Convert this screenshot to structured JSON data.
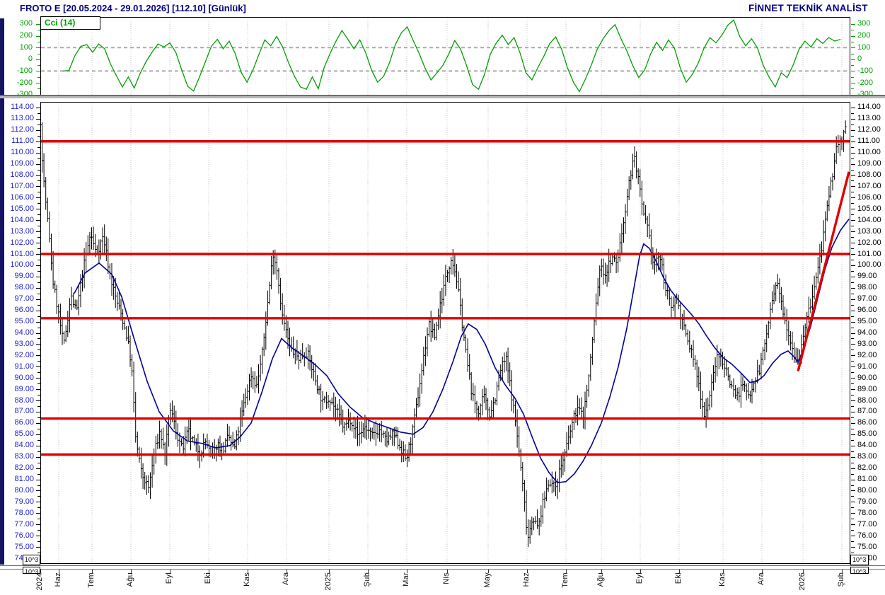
{
  "header": {
    "title": "FROTO E  [20.05.2024 - 29.01.2026]  [112.10]  [Günlük]",
    "brand": "FİNNET TEKNİK ANALİST",
    "symbol": "FROTO E",
    "date_range": "20.05.2024 - 29.01.2026",
    "last_price": "112.10",
    "period": "Günlük"
  },
  "indicator": {
    "label": "Cci (14)",
    "axis_ticks": [
      300,
      200,
      100,
      0,
      -100,
      -200,
      -300
    ],
    "ref_levels": [
      100,
      -100
    ]
  },
  "price_axis": {
    "max": 114,
    "min": 74,
    "label_step": 1,
    "tick_step": 0.5
  },
  "x_axis": {
    "labels": [
      [
        "2024",
        0
      ],
      [
        "Haz",
        0.0227
      ],
      [
        "Tem",
        0.0638
      ],
      [
        "Ağu",
        0.1118
      ],
      [
        "Eyl",
        0.1598
      ],
      [
        "Eki",
        0.2079
      ],
      [
        "Kas",
        0.2559
      ],
      [
        "Ara",
        0.3039
      ],
      [
        "2025",
        0.3563
      ],
      [
        "Şub",
        0.4044
      ],
      [
        "Mar",
        0.4524
      ],
      [
        "Nis",
        0.5022
      ],
      [
        "May",
        0.5528
      ],
      [
        "Haz",
        0.6009
      ],
      [
        "Tem",
        0.6489
      ],
      [
        "Ağu",
        0.6926
      ],
      [
        "Eyl",
        0.7406
      ],
      [
        "Eki",
        0.7886
      ],
      [
        "Kas",
        0.8428
      ],
      [
        "Ara",
        0.8908
      ],
      [
        "2026",
        0.9415
      ],
      [
        "Şub",
        0.9895
      ]
    ]
  },
  "scale": {
    "note": "10^3"
  },
  "colors": {
    "navy_text": "#000080",
    "left_axis_blue": "#2222cc",
    "right_axis_black": "#000000",
    "cci_green": "#00a000",
    "level_red": "#e00000",
    "ma_blue": "#000099",
    "bar_black": "#000000",
    "grid_dot": "#c6c6c6",
    "grid_dash": "#aaaaaa"
  },
  "chart_data": [
    {
      "type": "line",
      "name": "CCI (14)",
      "panel": "indicator",
      "legend": "Cci (14)",
      "ylim": [
        -308,
        360
      ],
      "ref_lines": [
        100,
        -100
      ],
      "x_start": 0.028,
      "x_step": 0.007328,
      "values": [
        -100,
        -95,
        30,
        110,
        125,
        60,
        130,
        90,
        -40,
        -140,
        -235,
        -150,
        -245,
        -120,
        -20,
        60,
        130,
        105,
        140,
        60,
        -90,
        -230,
        -270,
        -150,
        -20,
        110,
        170,
        90,
        155,
        50,
        -110,
        -195,
        -90,
        40,
        165,
        115,
        195,
        105,
        -30,
        -145,
        -235,
        -255,
        -150,
        -250,
        -70,
        50,
        155,
        245,
        170,
        90,
        165,
        55,
        -95,
        -195,
        -145,
        -30,
        125,
        225,
        275,
        160,
        50,
        -75,
        -175,
        -115,
        -50,
        45,
        160,
        85,
        -55,
        -215,
        -255,
        -130,
        45,
        140,
        205,
        125,
        185,
        55,
        -115,
        -175,
        -70,
        25,
        135,
        190,
        85,
        -75,
        -195,
        -275,
        -170,
        -50,
        85,
        175,
        245,
        295,
        175,
        70,
        -55,
        -155,
        -90,
        45,
        145,
        75,
        165,
        95,
        -75,
        -195,
        -130,
        -35,
        95,
        185,
        140,
        205,
        290,
        335,
        195,
        115,
        175,
        95,
        -55,
        -155,
        -235,
        -115,
        -155,
        -50,
        85,
        155,
        105,
        175,
        135,
        185,
        155,
        170
      ]
    },
    {
      "type": "ohlc",
      "name": "FROTO E daily price",
      "panel": "main",
      "ylim": [
        73.5,
        114.5
      ],
      "bars": 439,
      "last_close": 112.1,
      "levels": [
        111.0,
        101.0,
        95.3,
        86.4,
        83.2
      ],
      "trendline": {
        "x1": 0.9354,
        "p1": 90.6,
        "x2": 0.9983,
        "p2": 108.3
      },
      "close_keypoints": [
        [
          0,
          112.5
        ],
        [
          0.0035,
          108
        ],
        [
          0.0096,
          103.5
        ],
        [
          0.0157,
          98.5
        ],
        [
          0.0218,
          96
        ],
        [
          0.0288,
          92.8
        ],
        [
          0.0376,
          97.3
        ],
        [
          0.0445,
          95.8
        ],
        [
          0.0533,
          99.8
        ],
        [
          0.062,
          102.8
        ],
        [
          0.069,
          101
        ],
        [
          0.0777,
          102.6
        ],
        [
          0.0865,
          99
        ],
        [
          0.0934,
          97
        ],
        [
          0.1004,
          95.5
        ],
        [
          0.1074,
          93.5
        ],
        [
          0.1127,
          91
        ],
        [
          0.1179,
          84.5
        ],
        [
          0.1249,
          81.5
        ],
        [
          0.1336,
          80.2
        ],
        [
          0.1406,
          83.3
        ],
        [
          0.1476,
          85.3
        ],
        [
          0.1537,
          83.2
        ],
        [
          0.1607,
          87.3
        ],
        [
          0.1686,
          85
        ],
        [
          0.1755,
          83.6
        ],
        [
          0.1825,
          85.3
        ],
        [
          0.1904,
          84
        ],
        [
          0.1974,
          83.4
        ],
        [
          0.2044,
          84.5
        ],
        [
          0.2114,
          82.8
        ],
        [
          0.2183,
          84.2
        ],
        [
          0.2253,
          83.6
        ],
        [
          0.2323,
          84.8
        ],
        [
          0.2393,
          83.6
        ],
        [
          0.2463,
          86
        ],
        [
          0.2533,
          88.3
        ],
        [
          0.2603,
          90.3
        ],
        [
          0.2672,
          89.3
        ],
        [
          0.2742,
          92.3
        ],
        [
          0.2812,
          97
        ],
        [
          0.2873,
          101.2
        ],
        [
          0.2926,
          99.5
        ],
        [
          0.2987,
          95.5
        ],
        [
          0.3083,
          92.6
        ],
        [
          0.3188,
          91.8
        ],
        [
          0.3293,
          92.3
        ],
        [
          0.3397,
          89.8
        ],
        [
          0.3485,
          87.8
        ],
        [
          0.3572,
          88.3
        ],
        [
          0.3659,
          87
        ],
        [
          0.3747,
          85.6
        ],
        [
          0.3834,
          86.4
        ],
        [
          0.3921,
          84.9
        ],
        [
          0.4009,
          85.7
        ],
        [
          0.4096,
          84.8
        ],
        [
          0.4183,
          85.4
        ],
        [
          0.4271,
          84.4
        ],
        [
          0.4358,
          85
        ],
        [
          0.4445,
          83.9
        ],
        [
          0.4515,
          82.7
        ],
        [
          0.4585,
          84.8
        ],
        [
          0.4655,
          88
        ],
        [
          0.4725,
          91.5
        ],
        [
          0.4795,
          94.8
        ],
        [
          0.4865,
          93.6
        ],
        [
          0.4934,
          96.5
        ],
        [
          0.5004,
          98.8
        ],
        [
          0.5074,
          100.8
        ],
        [
          0.5135,
          99
        ],
        [
          0.5197,
          95.5
        ],
        [
          0.5266,
          91.5
        ],
        [
          0.5336,
          88.3
        ],
        [
          0.5406,
          87
        ],
        [
          0.5476,
          88.3
        ],
        [
          0.5546,
          86.8
        ],
        [
          0.5616,
          88.3
        ],
        [
          0.5686,
          90.8
        ],
        [
          0.5747,
          91.8
        ],
        [
          0.5808,
          89
        ],
        [
          0.5878,
          85.5
        ],
        [
          0.5948,
          81
        ],
        [
          0.6018,
          75.8
        ],
        [
          0.6079,
          77.8
        ],
        [
          0.614,
          76.6
        ],
        [
          0.621,
          79
        ],
        [
          0.628,
          81
        ],
        [
          0.635,
          80.2
        ],
        [
          0.6419,
          82
        ],
        [
          0.6489,
          83.6
        ],
        [
          0.6559,
          85.8
        ],
        [
          0.6629,
          87.4
        ],
        [
          0.6699,
          86.6
        ],
        [
          0.6769,
          90
        ],
        [
          0.6838,
          95
        ],
        [
          0.6908,
          99.8
        ],
        [
          0.6978,
          99.2
        ],
        [
          0.7048,
          100.6
        ],
        [
          0.7118,
          100.2
        ],
        [
          0.7188,
          103.3
        ],
        [
          0.7257,
          106.8
        ],
        [
          0.7327,
          109.8
        ],
        [
          0.738,
          107.8
        ],
        [
          0.7432,
          104.8
        ],
        [
          0.7502,
          103
        ],
        [
          0.7572,
          99.8
        ],
        [
          0.7641,
          101
        ],
        [
          0.7711,
          98.3
        ],
        [
          0.7781,
          96.3
        ],
        [
          0.7851,
          97.3
        ],
        [
          0.7921,
          95
        ],
        [
          0.7991,
          93.3
        ],
        [
          0.8061,
          91.8
        ],
        [
          0.8131,
          89.3
        ],
        [
          0.82,
          86.6
        ],
        [
          0.827,
          88.6
        ],
        [
          0.834,
          91.6
        ],
        [
          0.8401,
          91.9
        ],
        [
          0.8462,
          90.8
        ],
        [
          0.8532,
          89.3
        ],
        [
          0.8602,
          88.4
        ],
        [
          0.8672,
          89.4
        ],
        [
          0.8742,
          88.4
        ],
        [
          0.8812,
          89.8
        ],
        [
          0.8881,
          90.8
        ],
        [
          0.8951,
          93.3
        ],
        [
          0.9021,
          96.3
        ],
        [
          0.9091,
          98.4
        ],
        [
          0.9161,
          96.3
        ],
        [
          0.9231,
          94.2
        ],
        [
          0.9301,
          92.3
        ],
        [
          0.9354,
          91.3
        ],
        [
          0.9406,
          93.5
        ],
        [
          0.9467,
          95.3
        ],
        [
          0.9528,
          97
        ],
        [
          0.959,
          99.3
        ],
        [
          0.9651,
          101.8
        ],
        [
          0.9712,
          104.8
        ],
        [
          0.9764,
          107.3
        ],
        [
          0.9817,
          110
        ],
        [
          0.986,
          111.3
        ],
        [
          0.9895,
          110.8
        ],
        [
          0.993,
          112.1
        ]
      ],
      "ma_keypoints": [
        [
          0.0419,
          97.5
        ],
        [
          0.055,
          99.3
        ],
        [
          0.0725,
          100.2
        ],
        [
          0.0882,
          99.2
        ],
        [
          0.1004,
          97.2
        ],
        [
          0.1162,
          93.4
        ],
        [
          0.1319,
          89.7
        ],
        [
          0.1467,
          87
        ],
        [
          0.1642,
          85.3
        ],
        [
          0.1817,
          84.4
        ],
        [
          0.1991,
          84.2
        ],
        [
          0.2166,
          83.8
        ],
        [
          0.2341,
          84
        ],
        [
          0.2472,
          84.8
        ],
        [
          0.2603,
          86
        ],
        [
          0.2734,
          88.7
        ],
        [
          0.2865,
          91.7
        ],
        [
          0.2978,
          93.5
        ],
        [
          0.31,
          92.7
        ],
        [
          0.324,
          92
        ],
        [
          0.3389,
          91.2
        ],
        [
          0.3537,
          90.2
        ],
        [
          0.3677,
          88.6
        ],
        [
          0.3825,
          87.4
        ],
        [
          0.3974,
          86.5
        ],
        [
          0.4131,
          86
        ],
        [
          0.4288,
          85.6
        ],
        [
          0.4445,
          85.2
        ],
        [
          0.4603,
          85
        ],
        [
          0.4725,
          85.6
        ],
        [
          0.4847,
          87
        ],
        [
          0.4969,
          89
        ],
        [
          0.5092,
          91.4
        ],
        [
          0.5197,
          93.7
        ],
        [
          0.5284,
          94.8
        ],
        [
          0.5389,
          94.3
        ],
        [
          0.5493,
          93
        ],
        [
          0.5616,
          90.9
        ],
        [
          0.5738,
          89.4
        ],
        [
          0.586,
          88.2
        ],
        [
          0.5965,
          86.8
        ],
        [
          0.607,
          84.8
        ],
        [
          0.6175,
          82.9
        ],
        [
          0.628,
          81.6
        ],
        [
          0.6384,
          80.7
        ],
        [
          0.6489,
          80.8
        ],
        [
          0.6594,
          81.5
        ],
        [
          0.6699,
          82.6
        ],
        [
          0.6803,
          84
        ],
        [
          0.6926,
          86
        ],
        [
          0.7031,
          88.3
        ],
        [
          0.7135,
          91
        ],
        [
          0.724,
          94.4
        ],
        [
          0.7327,
          97.9
        ],
        [
          0.7397,
          100.8
        ],
        [
          0.7449,
          101.9
        ],
        [
          0.7519,
          101.5
        ],
        [
          0.7606,
          100.3
        ],
        [
          0.7694,
          98.9
        ],
        [
          0.7781,
          97.8
        ],
        [
          0.7868,
          97
        ],
        [
          0.7956,
          96.3
        ],
        [
          0.8043,
          95.6
        ],
        [
          0.8131,
          94.8
        ],
        [
          0.8218,
          93.8
        ],
        [
          0.8323,
          92.7
        ],
        [
          0.8428,
          91.8
        ],
        [
          0.8541,
          91.2
        ],
        [
          0.8655,
          90.4
        ],
        [
          0.876,
          89.6
        ],
        [
          0.8847,
          89.7
        ],
        [
          0.8934,
          90.2
        ],
        [
          0.9039,
          91.3
        ],
        [
          0.9144,
          92.1
        ],
        [
          0.9231,
          92.4
        ],
        [
          0.9301,
          91.9
        ],
        [
          0.9354,
          91.4
        ],
        [
          0.9424,
          92.6
        ],
        [
          0.9511,
          94.6
        ],
        [
          0.9598,
          97.1
        ],
        [
          0.9686,
          99.6
        ],
        [
          0.9773,
          101.6
        ],
        [
          0.9878,
          103.1
        ],
        [
          0.9983,
          104.1
        ]
      ]
    }
  ]
}
